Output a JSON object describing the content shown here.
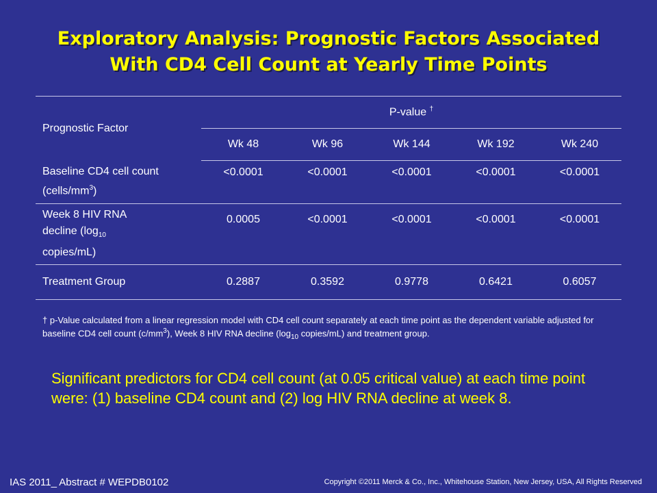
{
  "title_line1": "Exploratory Analysis: Prognostic Factors Associated",
  "title_line2": "With CD4 Cell Count at Yearly Time Points",
  "table": {
    "factor_header": "Prognostic Factor",
    "pvalue_header": "P-value",
    "pvalue_mark": "†",
    "weeks": [
      "Wk 48",
      "Wk 96",
      "Wk 144",
      "Wk 192",
      "Wk 240"
    ],
    "rows": [
      {
        "factor_line1": "Baseline CD4 cell count",
        "factor_line2_pre": "(cells/mm",
        "factor_sup": "3",
        "factor_line2_post": ")",
        "values": [
          "<0.0001",
          "<0.0001",
          "<0.0001",
          "<0.0001",
          "<0.0001"
        ]
      },
      {
        "factor_line1": "Week 8 HIV RNA",
        "factor_line2_pre": "decline (log",
        "factor_sub": "10",
        "factor_line3": "copies/mL)",
        "values": [
          "0.0005",
          "<0.0001",
          "<0.0001",
          "<0.0001",
          "<0.0001"
        ]
      },
      {
        "factor_line1": "Treatment Group",
        "values": [
          "0.2887",
          "0.3592",
          "0.9778",
          "0.6421",
          "0.6057"
        ]
      }
    ]
  },
  "footnote": {
    "part1": "† p-Value calculated  from a linear regression model with CD4 cell count separately at each time point as the dependent variable adjusted for baseline CD4 cell count (c/mm",
    "sup": "3",
    "part2": "), Week 8  HIV RNA decline (log",
    "sub": "10",
    "part3": " copies/mL) and treatment group."
  },
  "summary": "Significant predictors for CD4 cell count (at 0.05 critical value) at each time point were:  (1) baseline CD4 count and (2) log HIV RNA decline at week 8.",
  "footer_left": "IAS 2011_ Abstract # WEPDB0102",
  "footer_right": "Copyright ©2011 Merck & Co., Inc., Whitehouse Station, New Jersey, USA, All Rights Reserved",
  "colors": {
    "background": "#2e3192",
    "title": "#ffff00",
    "text": "#ffffff",
    "summary": "#ffff00"
  }
}
